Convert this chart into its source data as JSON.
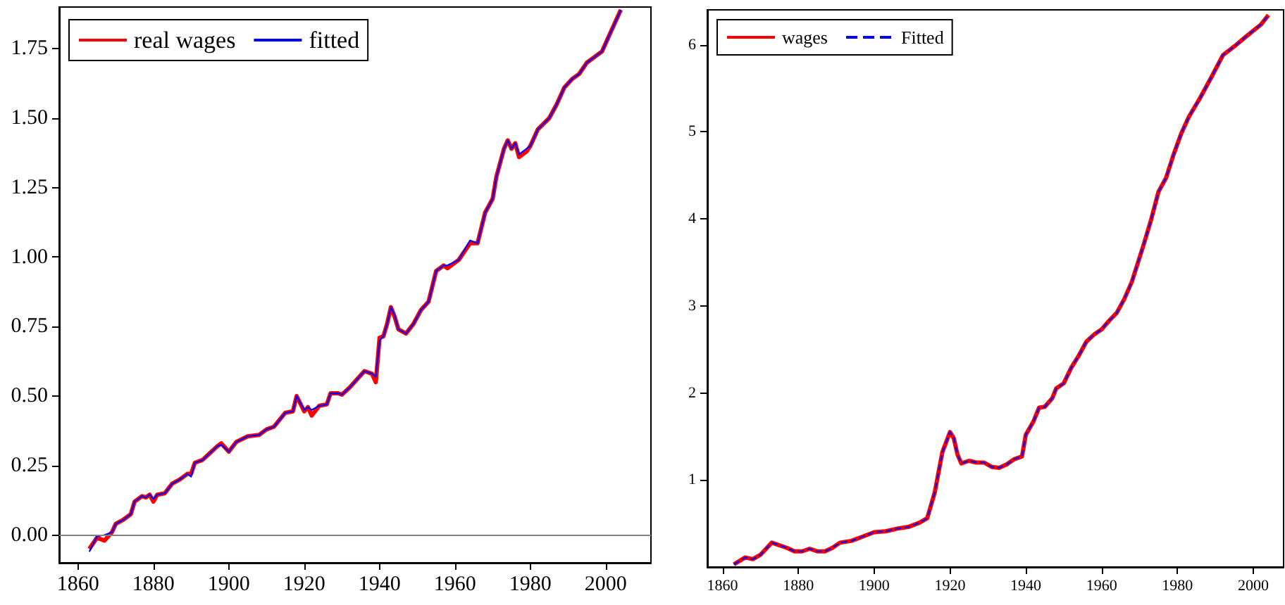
{
  "chart_data": [
    {
      "type": "line",
      "marker": "none",
      "legend": "top left",
      "xlim": [
        1855,
        2012
      ],
      "ylim": [
        -0.1,
        1.9
      ],
      "xticks": [
        1860,
        1880,
        1900,
        1920,
        1940,
        1960,
        1980,
        2000
      ],
      "yticks": [
        {
          "value": 0,
          "label": "0.00"
        },
        {
          "value": 0.25,
          "label": "0.25"
        },
        {
          "value": 0.5,
          "label": "0.50"
        },
        {
          "value": 0.75,
          "label": "0.75"
        },
        {
          "value": 1,
          "label": "1.00"
        },
        {
          "value": 1.25,
          "label": "1.25"
        },
        {
          "value": 1.5,
          "label": "1.50"
        },
        {
          "value": 1.75,
          "label": "1.75"
        }
      ],
      "ref_lines": [
        {
          "axis": "y",
          "value": 0,
          "color": "#808080"
        }
      ],
      "x": [
        1863,
        1865,
        1867,
        1869,
        1870,
        1872,
        1874,
        1875,
        1877,
        1878,
        1879,
        1880,
        1881,
        1883,
        1885,
        1887,
        1889,
        1890,
        1891,
        1893,
        1895,
        1897,
        1898,
        1900,
        1902,
        1905,
        1908,
        1910,
        1912,
        1915,
        1917,
        1918,
        1920,
        1921,
        1922,
        1924,
        1926,
        1927,
        1929,
        1930,
        1932,
        1934,
        1936,
        1938,
        1939,
        1940,
        1941,
        1942,
        1943,
        1944,
        1945,
        1947,
        1949,
        1951,
        1953,
        1955,
        1957,
        1958,
        1961,
        1964,
        1966,
        1968,
        1970,
        1971,
        1973,
        1974,
        1975,
        1976,
        1977,
        1979,
        1980,
        1982,
        1985,
        1987,
        1989,
        1991,
        1993,
        1995,
        1997,
        1999,
        2001,
        2003,
        2004
      ],
      "series": [
        {
          "name": "real wages",
          "color": "#ff0000",
          "line_style": "solid",
          "values": [
            -0.05,
            -0.01,
            -0.02,
            0.01,
            0.04,
            0.055,
            0.075,
            0.12,
            0.14,
            0.135,
            0.145,
            0.12,
            0.145,
            0.15,
            0.185,
            0.2,
            0.22,
            0.22,
            0.26,
            0.27,
            0.295,
            0.32,
            0.33,
            0.3,
            0.335,
            0.355,
            0.36,
            0.38,
            0.39,
            0.44,
            0.445,
            0.5,
            0.445,
            0.46,
            0.43,
            0.465,
            0.47,
            0.51,
            0.51,
            0.505,
            0.53,
            0.56,
            0.59,
            0.58,
            0.55,
            0.71,
            0.715,
            0.76,
            0.82,
            0.785,
            0.74,
            0.725,
            0.76,
            0.81,
            0.84,
            0.95,
            0.97,
            0.96,
            0.99,
            1.05,
            1.05,
            1.16,
            1.21,
            1.29,
            1.39,
            1.42,
            1.39,
            1.41,
            1.36,
            1.38,
            1.4,
            1.46,
            1.5,
            1.55,
            1.61,
            1.64,
            1.66,
            1.7,
            1.72,
            1.74,
            1.8,
            1.86,
            1.89
          ]
        },
        {
          "name": "fitted",
          "color": "#0000ff",
          "line_style": "solid",
          "values": [
            -0.06,
            -0.005,
            0,
            0.01,
            0.04,
            0.055,
            0.075,
            0.12,
            0.14,
            0.135,
            0.145,
            0.13,
            0.145,
            0.15,
            0.185,
            0.2,
            0.22,
            0.21,
            0.26,
            0.27,
            0.295,
            0.32,
            0.325,
            0.3,
            0.335,
            0.355,
            0.36,
            0.38,
            0.39,
            0.44,
            0.445,
            0.5,
            0.45,
            0.46,
            0.45,
            0.465,
            0.47,
            0.51,
            0.51,
            0.505,
            0.53,
            0.56,
            0.59,
            0.58,
            0.57,
            0.7,
            0.715,
            0.76,
            0.82,
            0.79,
            0.74,
            0.725,
            0.76,
            0.81,
            0.84,
            0.95,
            0.97,
            0.97,
            0.99,
            1.06,
            1.05,
            1.16,
            1.21,
            1.29,
            1.39,
            1.42,
            1.39,
            1.41,
            1.37,
            1.39,
            1.4,
            1.46,
            1.5,
            1.55,
            1.61,
            1.64,
            1.66,
            1.7,
            1.72,
            1.74,
            1.8,
            1.86,
            1.89
          ]
        }
      ]
    },
    {
      "type": "line",
      "marker": "none",
      "legend": "top left",
      "xlim": [
        1856,
        2008
      ],
      "ylim": [
        0,
        6.4
      ],
      "xticks": [
        1860,
        1880,
        1900,
        1920,
        1940,
        1960,
        1980,
        2000
      ],
      "yticks": [
        1,
        2,
        3,
        4,
        5,
        6
      ],
      "x": [
        1863,
        1866,
        1868,
        1870,
        1873,
        1875,
        1877,
        1879,
        1881,
        1883,
        1885,
        1887,
        1889,
        1891,
        1894,
        1897,
        1900,
        1903,
        1906,
        1909,
        1912,
        1914,
        1916,
        1918,
        1920,
        1921,
        1922,
        1923,
        1925,
        1927,
        1929,
        1931,
        1933,
        1935,
        1937,
        1939,
        1940,
        1942,
        1943.5,
        1945,
        1947,
        1948,
        1950,
        1952,
        1954,
        1956,
        1958,
        1960,
        1962,
        1964,
        1966,
        1968,
        1971,
        1973,
        1975,
        1977,
        1979,
        1981,
        1983,
        1986,
        1989,
        1992,
        1995,
        1998,
        2002,
        2004
      ],
      "series": [
        {
          "name": "wages",
          "color": "#ff0000",
          "line_style": "solid",
          "values": [
            0.03,
            0.11,
            0.09,
            0.14,
            0.28,
            0.25,
            0.22,
            0.18,
            0.18,
            0.21,
            0.18,
            0.18,
            0.22,
            0.28,
            0.3,
            0.35,
            0.4,
            0.41,
            0.44,
            0.46,
            0.51,
            0.56,
            0.86,
            1.32,
            1.55,
            1.48,
            1.29,
            1.19,
            1.22,
            1.2,
            1.2,
            1.15,
            1.14,
            1.18,
            1.24,
            1.27,
            1.52,
            1.67,
            1.83,
            1.84,
            1.94,
            2.05,
            2.11,
            2.29,
            2.43,
            2.59,
            2.67,
            2.73,
            2.83,
            2.92,
            3.08,
            3.28,
            3.69,
            3.98,
            4.31,
            4.47,
            4.74,
            4.98,
            5.17,
            5.39,
            5.63,
            5.88,
            5.98,
            6.09,
            6.23,
            6.34
          ]
        },
        {
          "name": "Fitted",
          "color": "#0000ff",
          "line_style": "dashed",
          "values": [
            0.03,
            0.11,
            0.09,
            0.14,
            0.28,
            0.25,
            0.22,
            0.18,
            0.18,
            0.21,
            0.18,
            0.18,
            0.22,
            0.28,
            0.3,
            0.35,
            0.4,
            0.41,
            0.44,
            0.46,
            0.51,
            0.56,
            0.86,
            1.32,
            1.55,
            1.48,
            1.29,
            1.19,
            1.22,
            1.2,
            1.2,
            1.15,
            1.14,
            1.18,
            1.24,
            1.27,
            1.52,
            1.67,
            1.83,
            1.84,
            1.94,
            2.05,
            2.11,
            2.29,
            2.43,
            2.59,
            2.67,
            2.73,
            2.83,
            2.92,
            3.08,
            3.28,
            3.69,
            3.98,
            4.31,
            4.47,
            4.74,
            4.98,
            5.17,
            5.39,
            5.63,
            5.88,
            5.98,
            6.09,
            6.23,
            6.34
          ]
        }
      ]
    }
  ]
}
